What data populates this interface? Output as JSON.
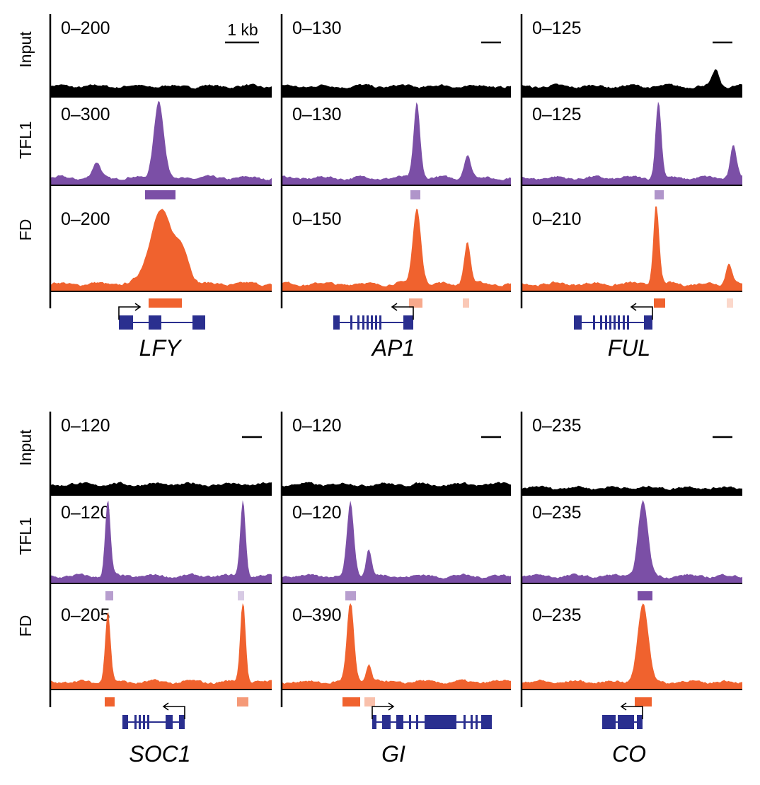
{
  "chart_data": {
    "type": "area",
    "title": "",
    "scale_bar_label": "1 kb",
    "track_labels": [
      "Input",
      "TFL1",
      "FD"
    ],
    "colors": {
      "Input": "#000000",
      "TFL1": "#7b4fa6",
      "FD": "#f0622e",
      "gene_model": "#2a2f8f"
    },
    "panels": [
      {
        "gene": "LFY",
        "strand": "+",
        "ranges": {
          "Input": "0–200",
          "TFL1": "0–300",
          "FD": "0–200"
        },
        "ymax": {
          "Input": 200,
          "TFL1": 300,
          "FD": 200
        },
        "peaks": {
          "Input": [],
          "TFL1": [
            {
              "pos": 0.21,
              "height": 52,
              "width": 0.018
            },
            {
              "pos": 0.49,
              "height": 280,
              "width": 0.022
            }
          ],
          "FD": [
            {
              "pos": 0.5,
              "height": 175,
              "width": 0.05
            },
            {
              "pos": 0.6,
              "height": 70,
              "width": 0.03
            }
          ]
        }
      },
      {
        "gene": "AP1",
        "strand": "-",
        "ranges": {
          "Input": "0–130",
          "TFL1": "0–130",
          "FD": "0–150"
        },
        "ymax": {
          "Input": 130,
          "TFL1": 130,
          "FD": 150
        },
        "peaks": {
          "Input": [],
          "TFL1": [
            {
              "pos": 0.59,
              "height": 118,
              "width": 0.014
            },
            {
              "pos": 0.81,
              "height": 36,
              "width": 0.015
            }
          ],
          "FD": [
            {
              "pos": 0.59,
              "height": 135,
              "width": 0.018
            },
            {
              "pos": 0.81,
              "height": 75,
              "width": 0.014
            }
          ]
        }
      },
      {
        "gene": "FUL",
        "strand": "-",
        "ranges": {
          "Input": "0–125",
          "TFL1": "0–125",
          "FD": "0–210"
        },
        "ymax": {
          "Input": 125,
          "TFL1": 125,
          "FD": 210
        },
        "peaks": {
          "Input": [
            {
              "pos": 0.88,
              "height": 25,
              "width": 0.015
            }
          ],
          "TFL1": [
            {
              "pos": 0.62,
              "height": 115,
              "width": 0.013
            },
            {
              "pos": 0.96,
              "height": 50,
              "width": 0.014
            }
          ],
          "FD": [
            {
              "pos": 0.61,
              "height": 200,
              "width": 0.013
            },
            {
              "pos": 0.94,
              "height": 55,
              "width": 0.014
            }
          ]
        }
      },
      {
        "gene": "SOC1",
        "strand": "-",
        "ranges": {
          "Input": "0–120",
          "TFL1": "0–120",
          "FD": "0–205"
        },
        "ymax": {
          "Input": 120,
          "TFL1": 120,
          "FD": 205
        },
        "peaks": {
          "Input": [],
          "TFL1": [
            {
              "pos": 0.26,
              "height": 108,
              "width": 0.012
            },
            {
              "pos": 0.87,
              "height": 110,
              "width": 0.012
            }
          ],
          "FD": [
            {
              "pos": 0.26,
              "height": 170,
              "width": 0.012
            },
            {
              "pos": 0.87,
              "height": 200,
              "width": 0.012
            }
          ]
        }
      },
      {
        "gene": "GI",
        "strand": "+",
        "ranges": {
          "Input": "0–120",
          "TFL1": "0–120",
          "FD": "0–390"
        },
        "ymax": {
          "Input": 120,
          "TFL1": 120,
          "FD": 390
        },
        "peaks": {
          "Input": [],
          "TFL1": [
            {
              "pos": 0.3,
              "height": 105,
              "width": 0.015
            },
            {
              "pos": 0.38,
              "height": 40,
              "width": 0.012
            }
          ],
          "FD": [
            {
              "pos": 0.3,
              "height": 370,
              "width": 0.015
            },
            {
              "pos": 0.38,
              "height": 80,
              "width": 0.012
            }
          ]
        }
      },
      {
        "gene": "CO",
        "strand": "-",
        "ranges": {
          "Input": "0–235",
          "TFL1": "0–235",
          "FD": "0–235"
        },
        "ymax": {
          "Input": 235,
          "TFL1": 235,
          "FD": 235
        },
        "peaks": {
          "Input": [],
          "TFL1": [
            {
              "pos": 0.55,
              "height": 210,
              "width": 0.022
            }
          ],
          "FD": [
            {
              "pos": 0.55,
              "height": 215,
              "width": 0.024
            }
          ]
        }
      }
    ]
  }
}
